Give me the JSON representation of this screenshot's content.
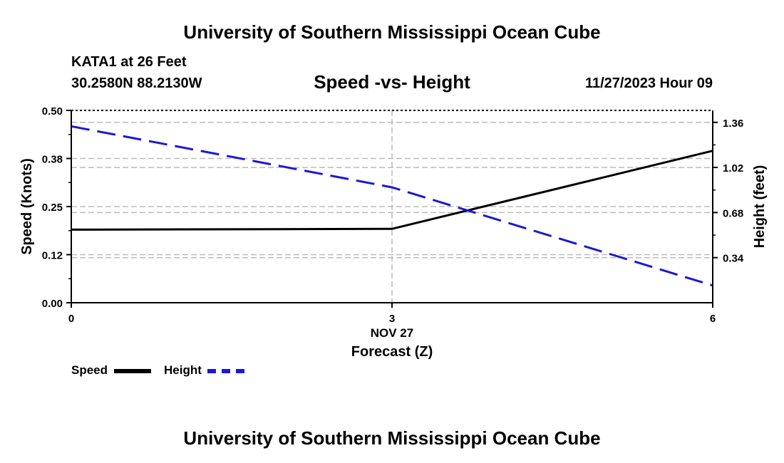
{
  "header": {
    "title": "University of Southern Mississippi Ocean Cube",
    "station": "KATA1 at 26 Feet",
    "coords": "30.2580N  88.2130W",
    "chart_title": "Speed -vs- Height",
    "datetime": "11/27/2023 Hour 09"
  },
  "footer": {
    "title": "University of Southern Mississippi Ocean Cube"
  },
  "legend": {
    "speed_label": "Speed",
    "height_label": "Height"
  },
  "colors": {
    "speed": "#000000",
    "height": "#1a1ad4",
    "grid": "#bbbbbb"
  },
  "chart_data": {
    "type": "line",
    "title": "Speed -vs- Height",
    "xlabel": "Forecast (Z)",
    "x_sublabel": "NOV 27",
    "ylabel_left": "Speed (Knots)",
    "ylabel_right": "Height (feet)",
    "x": [
      0,
      3,
      6
    ],
    "x_ticks": [
      0,
      3,
      6
    ],
    "x_tick_labels": [
      "0",
      "3",
      "6"
    ],
    "xlim": [
      0,
      6
    ],
    "ylim_left": [
      0,
      0.5
    ],
    "left_ticks": [
      0.0,
      0.125,
      0.25,
      0.375,
      0.5
    ],
    "left_tick_labels": [
      "0.00",
      "0.12",
      "0.25",
      "0.38",
      "0.50"
    ],
    "ylim_right": [
      0,
      1.45
    ],
    "right_ticks": [
      0.34,
      0.68,
      1.02,
      1.36
    ],
    "right_tick_labels": [
      "0.34",
      "0.68",
      "1.02",
      "1.36"
    ],
    "series": [
      {
        "name": "Speed",
        "axis": "left",
        "style": "solid",
        "values": [
          0.19,
          0.192,
          0.395
        ]
      },
      {
        "name": "Height",
        "axis": "right",
        "style": "dashed",
        "values": [
          1.33,
          0.87,
          0.13
        ]
      }
    ]
  }
}
